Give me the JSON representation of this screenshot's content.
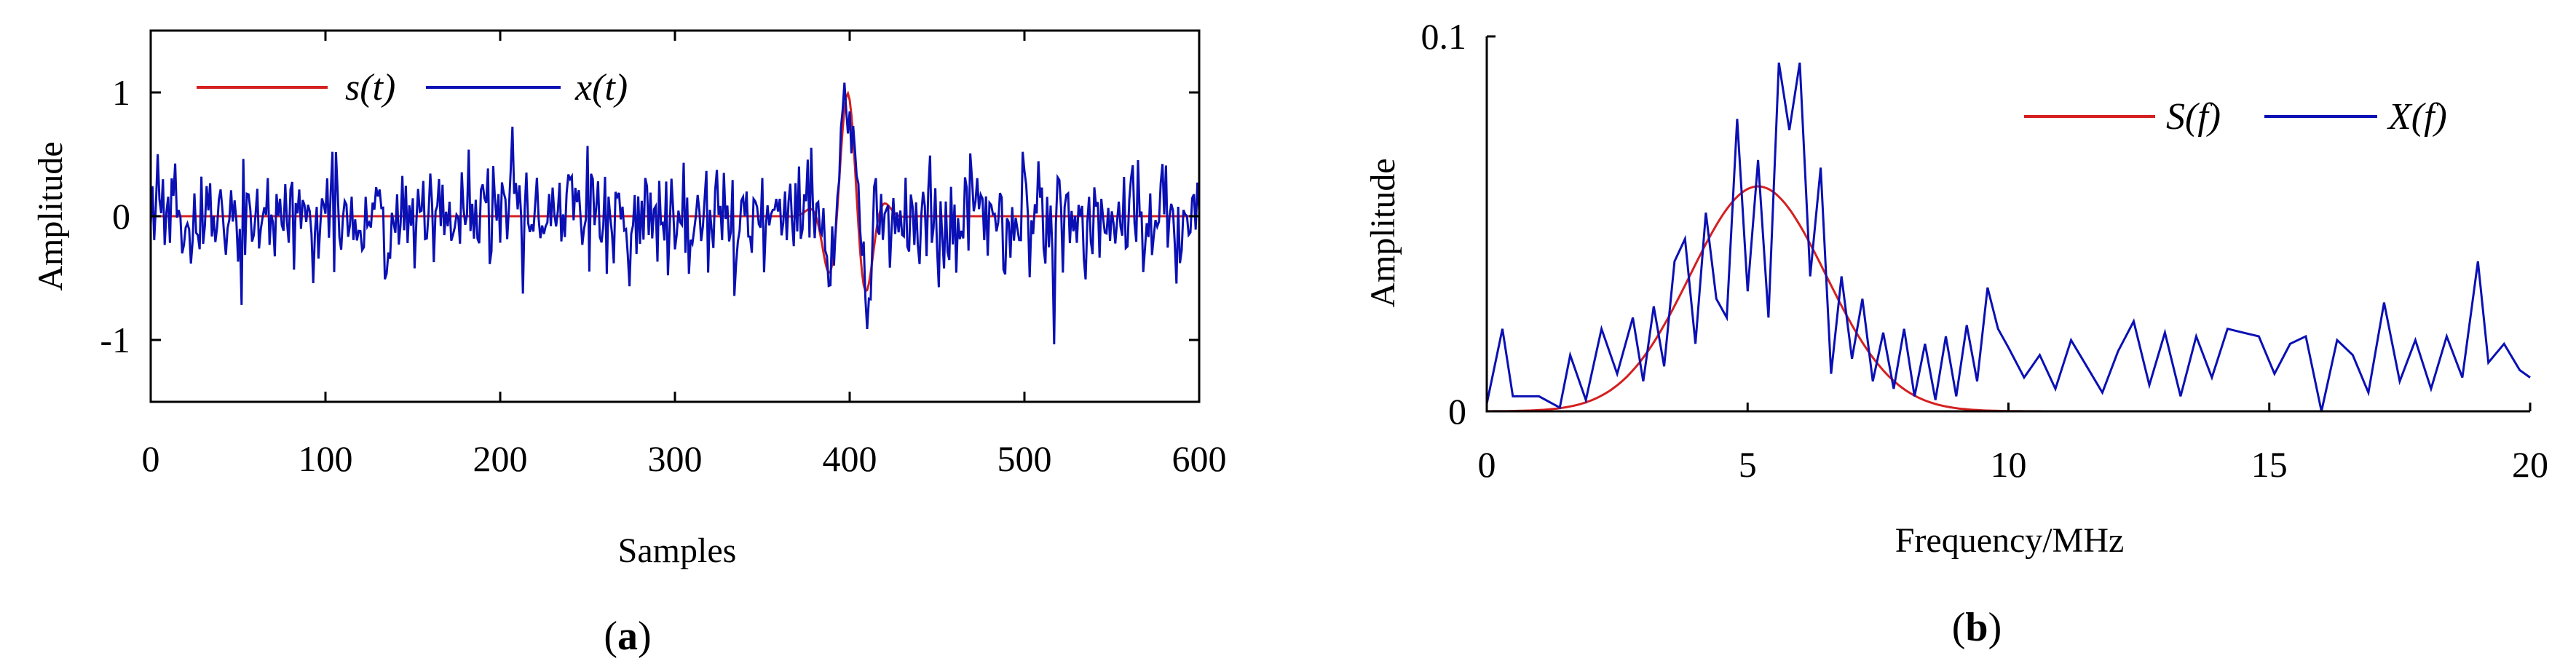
{
  "colors": {
    "signal": "#d42020",
    "noisy": "#0a10b4",
    "axis": "#000000"
  },
  "chart_data": [
    {
      "type": "line",
      "panel_label_open": "(",
      "panel_label_letter": "a",
      "panel_label_close": ")",
      "xlabel": "Samples",
      "ylabel": "Amplitude",
      "xlim": [
        0,
        600
      ],
      "ylim": [
        -1.5,
        1.5
      ],
      "xticks": [
        "0",
        "100",
        "200",
        "300",
        "400",
        "500",
        "600"
      ],
      "xtick_values": [
        0,
        100,
        200,
        300,
        400,
        500,
        600
      ],
      "yticks": [
        "-1",
        "0",
        "1"
      ],
      "ytick_values": [
        -1,
        0,
        1
      ],
      "legend_position": "top-left",
      "series": [
        {
          "name": "s(t)",
          "color": "#d42020",
          "generator": "gabor",
          "center": 400,
          "amplitude": 1.0,
          "width": 10,
          "period": 24
        },
        {
          "name": "x(t)",
          "color": "#0a10b4",
          "generator": "noisy",
          "n": 600,
          "noise_std": 0.22,
          "range": [
            -1.05,
            1.1
          ]
        }
      ]
    },
    {
      "type": "line",
      "panel_label_open": "(",
      "panel_label_letter": "b",
      "panel_label_close": ")",
      "xlabel": "Frequency/MHz",
      "ylabel": "Amplitude",
      "xlim": [
        0,
        20
      ],
      "ylim": [
        0,
        0.1
      ],
      "xticks": [
        "0",
        "5",
        "10",
        "15",
        "20"
      ],
      "xtick_values": [
        0,
        5,
        10,
        15,
        20
      ],
      "yticks": [
        "0",
        "0.1"
      ],
      "ytick_values": [
        0,
        0.1
      ],
      "legend_position": "top-right",
      "series": [
        {
          "name": "S(f)",
          "color": "#d42020",
          "generator": "gaussian",
          "center": 5.2,
          "peak": 0.06,
          "sigma": 1.3
        },
        {
          "name": "X(f)",
          "color": "#0a10b4",
          "x": [
            0,
            0.3,
            0.5,
            1.0,
            1.4,
            1.6,
            1.9,
            2.2,
            2.5,
            2.8,
            3.0,
            3.2,
            3.4,
            3.6,
            3.8,
            4.0,
            4.2,
            4.4,
            4.6,
            4.8,
            5.0,
            5.2,
            5.4,
            5.6,
            5.8,
            6.0,
            6.2,
            6.4,
            6.6,
            6.8,
            7.0,
            7.2,
            7.4,
            7.6,
            7.8,
            8.0,
            8.2,
            8.4,
            8.6,
            8.8,
            9.0,
            9.2,
            9.4,
            9.6,
            9.8,
            10.0,
            10.3,
            10.6,
            10.9,
            11.2,
            11.5,
            11.8,
            12.1,
            12.4,
            12.7,
            13.0,
            13.3,
            13.6,
            13.9,
            14.2,
            14.5,
            14.8,
            15.1,
            15.4,
            15.7,
            16.0,
            16.3,
            16.6,
            16.9,
            17.2,
            17.5,
            17.8,
            18.1,
            18.4,
            18.7,
            19.0,
            19.2,
            19.5,
            19.8,
            20.0
          ],
          "y": [
            0.002,
            0.022,
            0.004,
            0.004,
            0.001,
            0.015,
            0.003,
            0.022,
            0.01,
            0.025,
            0.008,
            0.028,
            0.012,
            0.04,
            0.046,
            0.018,
            0.053,
            0.03,
            0.025,
            0.078,
            0.032,
            0.067,
            0.025,
            0.093,
            0.075,
            0.093,
            0.036,
            0.065,
            0.01,
            0.036,
            0.014,
            0.03,
            0.008,
            0.021,
            0.006,
            0.022,
            0.004,
            0.018,
            0.003,
            0.02,
            0.004,
            0.023,
            0.008,
            0.033,
            0.022,
            0.017,
            0.009,
            0.015,
            0.006,
            0.019,
            0.012,
            0.005,
            0.016,
            0.024,
            0.007,
            0.021,
            0.004,
            0.02,
            0.009,
            0.022,
            0.021,
            0.02,
            0.01,
            0.018,
            0.02,
            0.0,
            0.019,
            0.015,
            0.005,
            0.029,
            0.008,
            0.019,
            0.006,
            0.02,
            0.009,
            0.04,
            0.013,
            0.018,
            0.011,
            0.009
          ]
        }
      ]
    }
  ]
}
